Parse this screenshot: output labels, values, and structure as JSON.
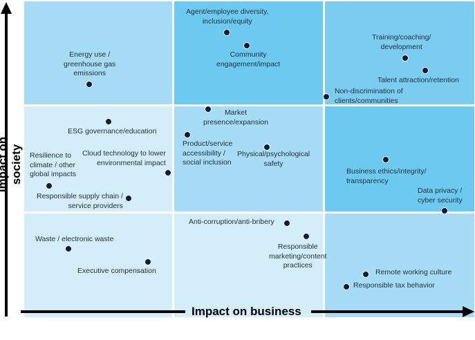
{
  "axes": {
    "x_label": "Impact on business",
    "y_label": "Impact on society"
  },
  "grid": {
    "colors": {
      "cell_0_0": "#a6dcf5",
      "cell_1_0": "#6ccaf0",
      "cell_2_0": "#7acdf0",
      "cell_0_1": "#d4eef9",
      "cell_1_1": "#a6dcf5",
      "cell_2_1": "#6ccaf0",
      "cell_0_2": "#d4eef9",
      "cell_1_2": "#d4eef9",
      "cell_2_2": "#a6dcf5"
    }
  },
  "items": [
    {
      "id": "agent-diversity",
      "label": "Agent/employee diversity,\ninclusion/equity"
    },
    {
      "id": "community",
      "label": "Community\nengagement/impact"
    },
    {
      "id": "training",
      "label": "Training/coaching/\ndevelopment"
    },
    {
      "id": "talent",
      "label": "Talent attraction/retention"
    },
    {
      "id": "non-discrimination",
      "label": "Non-discrimination of\nclients/communities"
    },
    {
      "id": "energy",
      "label": "Energy use /\ngreenhouse gas\nemissions"
    },
    {
      "id": "market",
      "label": "Market\npresence/expansion"
    },
    {
      "id": "esg",
      "label": "ESG governance/education"
    },
    {
      "id": "product-access",
      "label": "Product/service\naccessibility /\nsocial inclusion"
    },
    {
      "id": "psych-safety",
      "label": "Physical/psychological\nsafety"
    },
    {
      "id": "cloud",
      "label": "Cloud technology to lower\nenvironmental impact"
    },
    {
      "id": "resilience",
      "label": "Resilience to\nclimate / other\nglobal impacts"
    },
    {
      "id": "supply-chain",
      "label": "Responsible supply chain /\nservice providers"
    },
    {
      "id": "business-ethics",
      "label": "Business ethics/integrity/\ntransparency"
    },
    {
      "id": "data-privacy",
      "label": "Data privacy /\ncyber security"
    },
    {
      "id": "anti-corruption",
      "label": "Anti-corruption/anti-bribery"
    },
    {
      "id": "responsible-marketing",
      "label": "Responsible\nmarketing/content\npractices"
    },
    {
      "id": "waste",
      "label": "Waste / electronic waste"
    },
    {
      "id": "exec-comp",
      "label": "Executive compensation"
    },
    {
      "id": "remote-work",
      "label": "Remote working culture"
    },
    {
      "id": "tax",
      "label": "Responsible tax behavior"
    }
  ]
}
